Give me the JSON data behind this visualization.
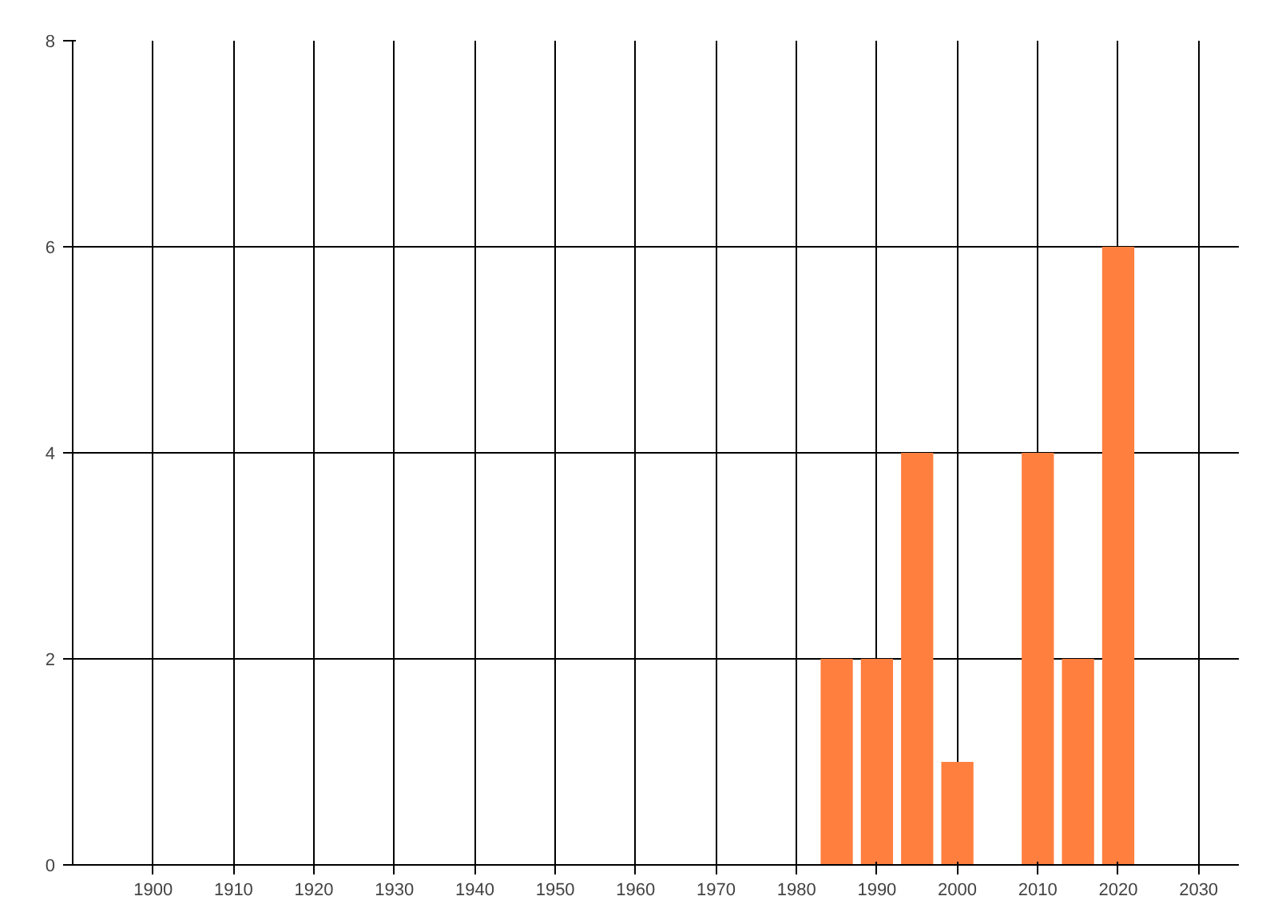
{
  "chart_data": {
    "type": "bar",
    "x": [
      1985,
      1990,
      1995,
      2000,
      2010,
      2015,
      2020
    ],
    "values": [
      2,
      2,
      4,
      1,
      4,
      2,
      6
    ],
    "color": "#ff7f3f",
    "xlim": [
      1890,
      2035
    ],
    "xticks": [
      1900,
      1910,
      1920,
      1930,
      1940,
      1950,
      1960,
      1970,
      1980,
      1990,
      2000,
      2010,
      2020,
      2030
    ],
    "ylim": [
      0,
      8
    ],
    "yticks": [
      0,
      2,
      4,
      6,
      8
    ],
    "grid": true
  }
}
